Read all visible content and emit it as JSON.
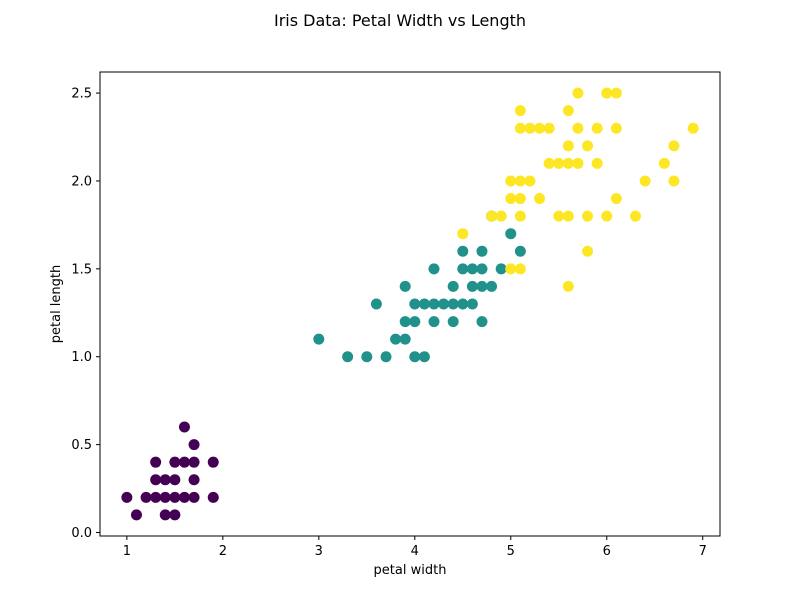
{
  "chart_data": {
    "type": "scatter",
    "title": "Iris Data: Petal Width vs Length",
    "xlabel": "petal width",
    "ylabel": "petal length",
    "xlim": [
      0.72,
      7.18
    ],
    "ylim": [
      -0.02,
      2.62
    ],
    "xticks": [
      1,
      2,
      3,
      4,
      5,
      6,
      7
    ],
    "yticks": [
      0.0,
      0.5,
      1.0,
      1.5,
      2.0,
      2.5
    ],
    "xtick_labels": [
      "1",
      "2",
      "3",
      "4",
      "5",
      "6",
      "7"
    ],
    "ytick_labels": [
      "0.0",
      "0.5",
      "1.0",
      "1.5",
      "2.0",
      "2.5"
    ],
    "grid": false,
    "legend": false,
    "series": [
      {
        "color": "#440154",
        "points": [
          [
            1.0,
            0.2
          ],
          [
            1.1,
            0.1
          ],
          [
            1.2,
            0.2
          ],
          [
            1.3,
            0.2
          ],
          [
            1.3,
            0.3
          ],
          [
            1.3,
            0.4
          ],
          [
            1.4,
            0.1
          ],
          [
            1.4,
            0.2
          ],
          [
            1.4,
            0.3
          ],
          [
            1.5,
            0.1
          ],
          [
            1.5,
            0.2
          ],
          [
            1.5,
            0.3
          ],
          [
            1.5,
            0.4
          ],
          [
            1.6,
            0.2
          ],
          [
            1.6,
            0.4
          ],
          [
            1.6,
            0.6
          ],
          [
            1.7,
            0.2
          ],
          [
            1.7,
            0.3
          ],
          [
            1.7,
            0.4
          ],
          [
            1.7,
            0.5
          ],
          [
            1.9,
            0.2
          ],
          [
            1.9,
            0.4
          ]
        ]
      },
      {
        "color": "#21918c",
        "points": [
          [
            3.0,
            1.1
          ],
          [
            3.3,
            1.0
          ],
          [
            3.5,
            1.0
          ],
          [
            3.6,
            1.3
          ],
          [
            3.7,
            1.0
          ],
          [
            3.8,
            1.1
          ],
          [
            3.9,
            1.1
          ],
          [
            3.9,
            1.2
          ],
          [
            3.9,
            1.4
          ],
          [
            4.0,
            1.0
          ],
          [
            4.0,
            1.2
          ],
          [
            4.0,
            1.3
          ],
          [
            4.1,
            1.0
          ],
          [
            4.1,
            1.3
          ],
          [
            4.2,
            1.2
          ],
          [
            4.2,
            1.3
          ],
          [
            4.2,
            1.5
          ],
          [
            4.3,
            1.3
          ],
          [
            4.4,
            1.2
          ],
          [
            4.4,
            1.3
          ],
          [
            4.4,
            1.4
          ],
          [
            4.5,
            1.3
          ],
          [
            4.5,
            1.5
          ],
          [
            4.5,
            1.6
          ],
          [
            4.6,
            1.3
          ],
          [
            4.6,
            1.4
          ],
          [
            4.6,
            1.5
          ],
          [
            4.7,
            1.2
          ],
          [
            4.7,
            1.4
          ],
          [
            4.7,
            1.5
          ],
          [
            4.7,
            1.6
          ],
          [
            4.8,
            1.4
          ],
          [
            4.8,
            1.8
          ],
          [
            4.9,
            1.5
          ],
          [
            5.0,
            1.7
          ],
          [
            5.1,
            1.6
          ]
        ]
      },
      {
        "color": "#fde725",
        "points": [
          [
            4.5,
            1.7
          ],
          [
            4.8,
            1.8
          ],
          [
            4.9,
            1.8
          ],
          [
            5.0,
            1.5
          ],
          [
            5.0,
            1.9
          ],
          [
            5.0,
            2.0
          ],
          [
            5.1,
            1.5
          ],
          [
            5.1,
            1.8
          ],
          [
            5.1,
            1.9
          ],
          [
            5.1,
            2.0
          ],
          [
            5.1,
            2.3
          ],
          [
            5.1,
            2.4
          ],
          [
            5.2,
            2.0
          ],
          [
            5.2,
            2.3
          ],
          [
            5.3,
            1.9
          ],
          [
            5.3,
            2.3
          ],
          [
            5.4,
            2.1
          ],
          [
            5.4,
            2.3
          ],
          [
            5.5,
            1.8
          ],
          [
            5.5,
            2.1
          ],
          [
            5.6,
            1.4
          ],
          [
            5.6,
            1.8
          ],
          [
            5.6,
            2.1
          ],
          [
            5.6,
            2.2
          ],
          [
            5.6,
            2.4
          ],
          [
            5.7,
            2.1
          ],
          [
            5.7,
            2.3
          ],
          [
            5.7,
            2.5
          ],
          [
            5.8,
            1.6
          ],
          [
            5.8,
            1.8
          ],
          [
            5.8,
            2.2
          ],
          [
            5.9,
            2.1
          ],
          [
            5.9,
            2.3
          ],
          [
            6.0,
            1.8
          ],
          [
            6.0,
            2.5
          ],
          [
            6.1,
            1.9
          ],
          [
            6.1,
            2.3
          ],
          [
            6.1,
            2.5
          ],
          [
            6.3,
            1.8
          ],
          [
            6.4,
            2.0
          ],
          [
            6.6,
            2.1
          ],
          [
            6.7,
            2.0
          ],
          [
            6.7,
            2.2
          ],
          [
            6.9,
            2.3
          ]
        ]
      }
    ]
  }
}
